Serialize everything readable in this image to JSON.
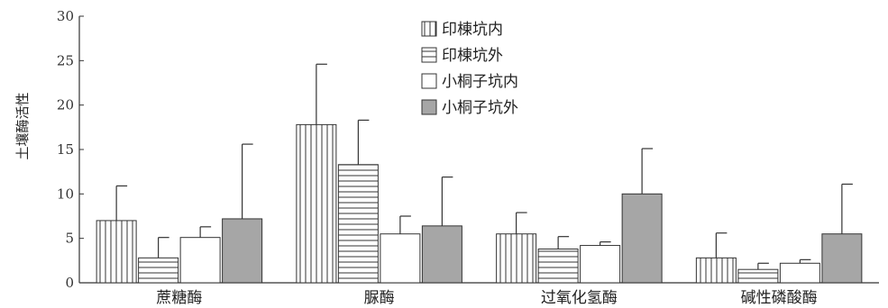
{
  "chart_data": {
    "type": "bar",
    "title": "",
    "ylabel": "土壤酶活性",
    "xlabel": "",
    "ylim": [
      0,
      30
    ],
    "yticks": [
      0,
      5,
      10,
      15,
      20,
      25,
      30
    ],
    "categories": [
      "蔗糖酶",
      "脲酶",
      "过氧化氢酶",
      "碱性磷酸酶"
    ],
    "legend_position": "top-center",
    "grid": false,
    "series": [
      {
        "name": "印棟坑内",
        "pattern": "vertical-lines",
        "color": "#ffffff",
        "values": [
          7.0,
          17.8,
          5.5,
          2.8
        ],
        "errors": [
          3.9,
          6.8,
          2.4,
          2.8
        ]
      },
      {
        "name": "印棟坑外",
        "pattern": "horizontal-lines",
        "color": "#ffffff",
        "values": [
          2.8,
          13.3,
          3.8,
          1.5
        ],
        "errors": [
          2.3,
          5.0,
          1.4,
          0.7
        ]
      },
      {
        "name": "小桐子坑内",
        "pattern": "solid",
        "color": "#ffffff",
        "values": [
          5.1,
          5.5,
          4.2,
          2.2
        ],
        "errors": [
          1.2,
          2.0,
          0.4,
          0.4
        ]
      },
      {
        "name": "小桐子坑外",
        "pattern": "solid",
        "color": "#a6a6a6",
        "values": [
          7.2,
          6.4,
          10.0,
          5.5
        ],
        "errors": [
          8.4,
          5.5,
          5.1,
          5.6
        ]
      }
    ]
  }
}
